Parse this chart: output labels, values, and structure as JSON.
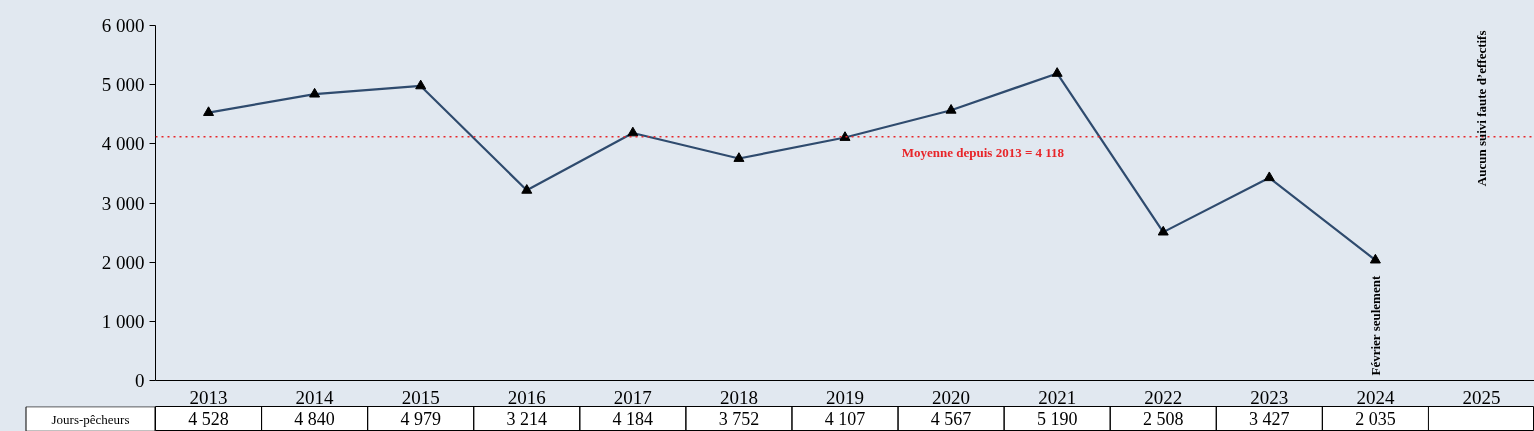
{
  "chart_data": {
    "type": "line",
    "categories": [
      "2013",
      "2014",
      "2015",
      "2016",
      "2017",
      "2018",
      "2019",
      "2020",
      "2021",
      "2022",
      "2023",
      "2024",
      "2025"
    ],
    "series": [
      {
        "name": "Jours-pêcheurs",
        "color": "#2f4b6e",
        "values": [
          4528,
          4840,
          4979,
          3214,
          4184,
          3752,
          4107,
          4567,
          5190,
          2508,
          3427,
          2035,
          null
        ],
        "value_labels": [
          "4 528",
          "4 840",
          "4 979",
          "3 214",
          "4 184",
          "3 752",
          "4 107",
          "4 567",
          "5 190",
          "2 508",
          "3 427",
          "2 035",
          null
        ]
      }
    ],
    "marker": "triangle",
    "line_style": "solid",
    "ylim": [
      0,
      6000
    ],
    "yticks": [
      0,
      {
        "value": 1000,
        "label": "1 000"
      },
      {
        "value": 2000,
        "label": "2 000"
      },
      {
        "value": 3000,
        "label": "3 000"
      },
      {
        "value": 4000,
        "label": "4 000"
      },
      {
        "value": 5000,
        "label": "5 000"
      },
      {
        "value": 6000,
        "label": "6 000"
      }
    ],
    "grid": false,
    "legend": false,
    "ref_lines": [
      {
        "axis": "y",
        "value": 4118,
        "label": "Moyenne depuis 2013 = 4 118",
        "color": "#e8262a",
        "line_style": "dotted"
      }
    ],
    "annotations": [
      "Février seulement",
      "Aucun suivi faute d’effectifs"
    ]
  }
}
